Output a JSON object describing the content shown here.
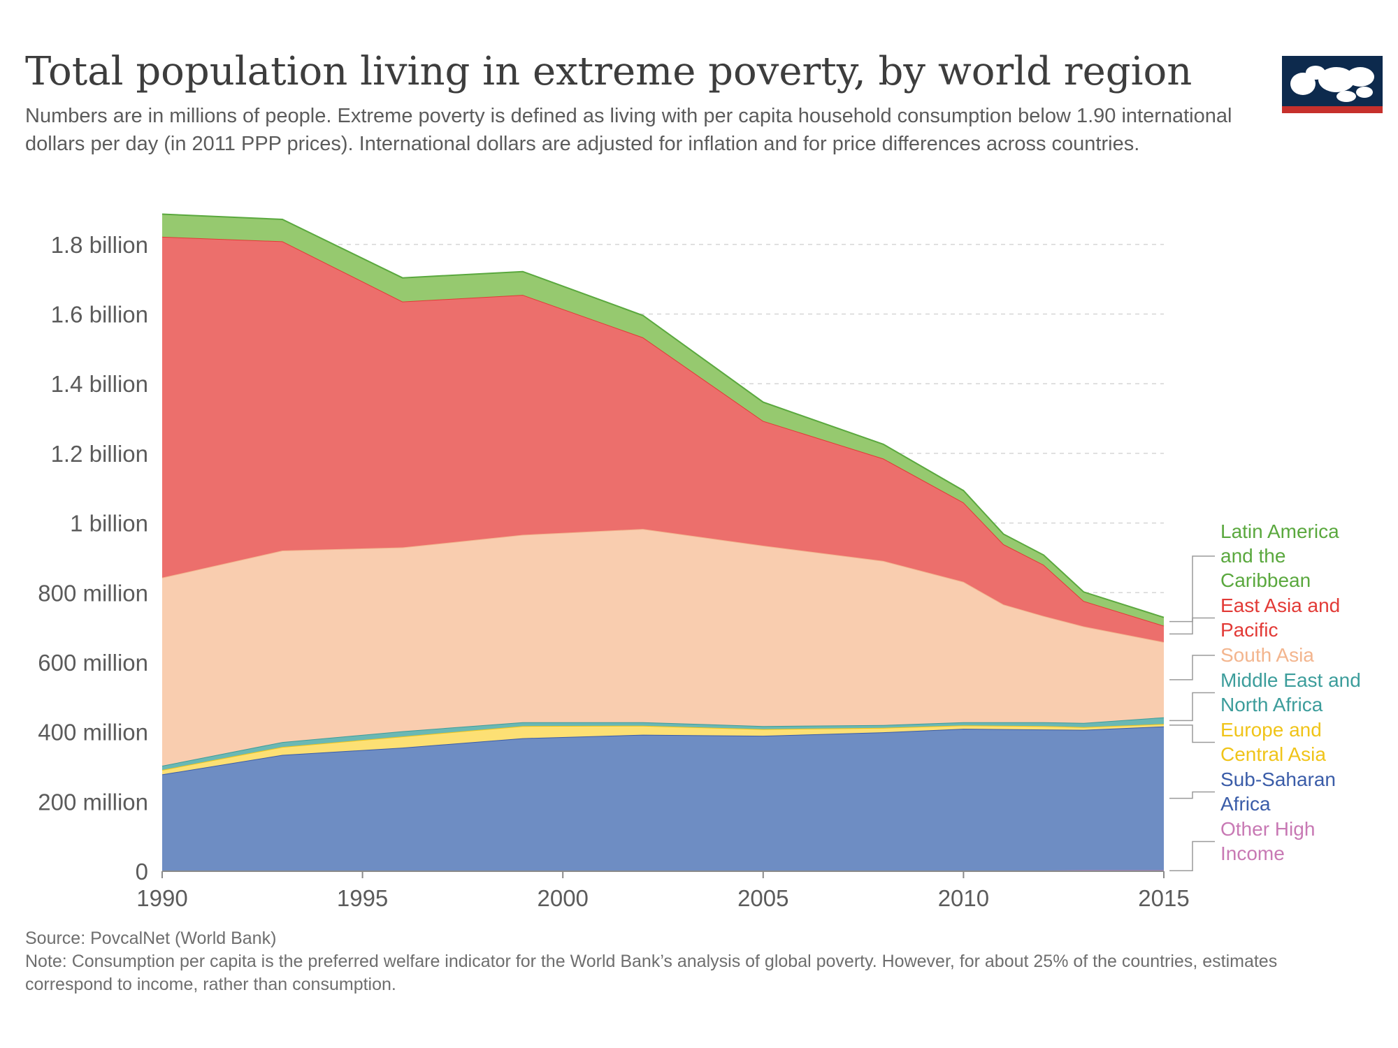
{
  "title": "Total population living in extreme poverty, by world region",
  "subtitle": "Numbers are in millions of people. Extreme poverty is defined as living with per capita household consumption below 1.90 international dollars per day (in 2011 PPP prices). International dollars are adjusted for inflation and for price differences across countries.",
  "footer": {
    "source": "Source: PovcalNet (World Bank)",
    "note": "Note: Consumption per capita is the preferred welfare indicator for the World Bank’s analysis of global poverty. However, for about 25% of the countries, estimates correspond to income, rather than consumption."
  },
  "logo": {
    "icon": "our-world-in-data-logo",
    "bg_color": "#0d2a4d",
    "bar_color": "#c6302c"
  },
  "chart_data": {
    "type": "area",
    "stacked": true,
    "x": [
      1990,
      1993,
      1996,
      1999,
      2002,
      2005,
      2008,
      2010,
      2011,
      2012,
      2013,
      2015
    ],
    "xticks": [
      1990,
      1995,
      2000,
      2005,
      2010,
      2015
    ],
    "ylim": [
      0,
      1900
    ],
    "yticks": [
      {
        "value": 0,
        "label": "0"
      },
      {
        "value": 200,
        "label": "200 million"
      },
      {
        "value": 400,
        "label": "400 million"
      },
      {
        "value": 600,
        "label": "600 million"
      },
      {
        "value": 800,
        "label": "800 million"
      },
      {
        "value": 1000,
        "label": "1 billion"
      },
      {
        "value": 1200,
        "label": "1.2 billion"
      },
      {
        "value": 1400,
        "label": "1.4 billion"
      },
      {
        "value": 1600,
        "label": "1.6 billion"
      },
      {
        "value": 1800,
        "label": "1.8 billion"
      }
    ],
    "grid": true,
    "legend": "right",
    "series": [
      {
        "name": "Other High Income",
        "label_lines": [
          "Other High",
          "Income"
        ],
        "color": "#c879b4",
        "fill": "#e1b6d9",
        "values": [
          1,
          1,
          1,
          1,
          1,
          1,
          1,
          2,
          2,
          2,
          3,
          3
        ]
      },
      {
        "name": "Sub-Saharan Africa",
        "label_lines": [
          "Sub-Saharan",
          "Africa"
        ],
        "color": "#3a5ca8",
        "fill": "#6e8dc3",
        "values": [
          277,
          333,
          354,
          381,
          391,
          388,
          398,
          407,
          406,
          405,
          403,
          413
        ]
      },
      {
        "name": "Europe and Central Asia",
        "label_lines": [
          "Europe and",
          "Central Asia"
        ],
        "color": "#f0c419",
        "fill": "#fde074",
        "values": [
          13,
          23,
          32,
          35,
          26,
          19,
          13,
          10,
          10,
          10,
          8,
          7
        ]
      },
      {
        "name": "Middle East and North Africa",
        "label_lines": [
          "Middle East and",
          "North Africa"
        ],
        "color": "#3c9d9b",
        "fill": "#6bb8b4",
        "values": [
          12,
          14,
          15,
          11,
          10,
          9,
          8,
          9,
          10,
          11,
          12,
          19
        ]
      },
      {
        "name": "South Asia",
        "label_lines": [
          "South Asia"
        ],
        "color": "#f3b58e",
        "fill": "#f9cdaf",
        "values": [
          540,
          550,
          528,
          538,
          555,
          518,
          471,
          403,
          338,
          305,
          277,
          216
        ]
      },
      {
        "name": "East Asia and Pacific",
        "label_lines": [
          "East Asia and",
          "Pacific"
        ],
        "color": "#e23a36",
        "fill": "#ec6f6c",
        "values": [
          979,
          888,
          706,
          689,
          550,
          358,
          294,
          228,
          173,
          147,
          73,
          47
        ]
      },
      {
        "name": "Latin America and the Caribbean",
        "label_lines": [
          "Latin America",
          "and the",
          "Caribbean"
        ],
        "color": "#5aa83e",
        "fill": "#96c96f",
        "values": [
          65,
          63,
          68,
          67,
          63,
          54,
          41,
          34,
          29,
          28,
          26,
          24
        ]
      }
    ]
  }
}
